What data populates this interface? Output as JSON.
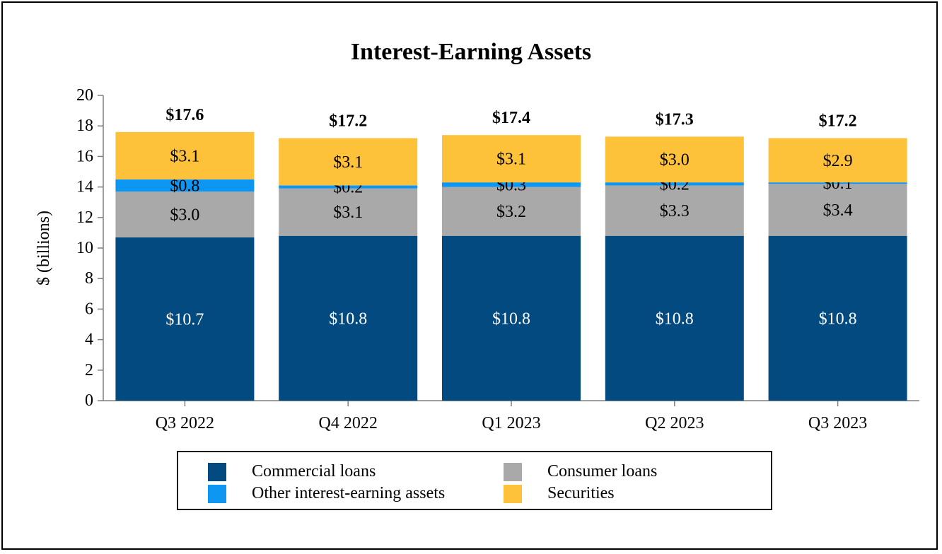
{
  "chart_data": {
    "type": "bar",
    "stacked": true,
    "title": "Interest-Earning Assets",
    "ylabel": "$ (billions)",
    "xlabel": "",
    "ylim": [
      0,
      20
    ],
    "yticks": [
      0,
      2,
      4,
      6,
      8,
      10,
      12,
      14,
      16,
      18,
      20
    ],
    "categories": [
      "Q3 2022",
      "Q4 2022",
      "Q1 2023",
      "Q2 2023",
      "Q3 2023"
    ],
    "series": [
      {
        "name": "Commercial loans",
        "color": "#034a80",
        "label_color": "#ffffff",
        "values": [
          10.7,
          10.8,
          10.8,
          10.8,
          10.8
        ],
        "labels": [
          "$10.7",
          "$10.8",
          "$10.8",
          "$10.8",
          "$10.8"
        ]
      },
      {
        "name": "Consumer loans",
        "color": "#a9a9a9",
        "label_color": "#000000",
        "values": [
          3.0,
          3.1,
          3.2,
          3.3,
          3.4
        ],
        "labels": [
          "$3.0",
          "$3.1",
          "$3.2",
          "$3.3",
          "$3.4"
        ]
      },
      {
        "name": "Other interest-earning assets",
        "color": "#0d96f2",
        "label_color": "#000000",
        "values": [
          0.8,
          0.2,
          0.3,
          0.2,
          0.1
        ],
        "labels": [
          "$0.8",
          "$0.2",
          "$0.3",
          "$0.2",
          "$0.1"
        ]
      },
      {
        "name": "Securities",
        "color": "#fec23a",
        "label_color": "#000000",
        "values": [
          3.1,
          3.1,
          3.1,
          3.0,
          2.9
        ],
        "labels": [
          "$3.1",
          "$3.1",
          "$3.1",
          "$3.0",
          "$2.9"
        ]
      }
    ],
    "totals": [
      17.6,
      17.2,
      17.4,
      17.3,
      17.2
    ],
    "total_labels": [
      "$17.6",
      "$17.2",
      "$17.4",
      "$17.3",
      "$17.2"
    ],
    "legend_position": "bottom",
    "grid": false
  },
  "legend": {
    "items": [
      {
        "label": "Commercial loans",
        "color": "#034a80"
      },
      {
        "label": "Consumer loans",
        "color": "#a9a9a9"
      },
      {
        "label": "Other interest-earning assets",
        "color": "#0d96f2"
      },
      {
        "label": "Securities",
        "color": "#fec23a"
      }
    ]
  }
}
